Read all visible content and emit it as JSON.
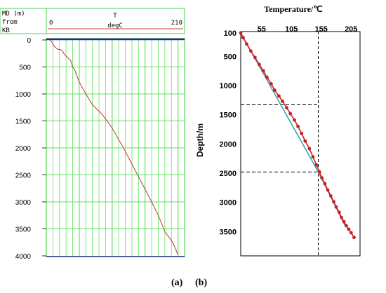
{
  "chart_data": [
    {
      "type": "line",
      "panel_label": "(a)",
      "header_left": [
        "MD (m)",
        "from",
        "KB"
      ],
      "series_name": "T",
      "series_unit": "degC",
      "xlim": [
        0,
        210
      ],
      "ylim": [
        0,
        4000
      ],
      "y_reversed": true,
      "grid": true,
      "x_ticks": [
        "0",
        "210"
      ],
      "y_ticks": [
        "0",
        "500",
        "1000",
        "1500",
        "2000",
        "2500",
        "3000",
        "3500",
        "4000"
      ],
      "colors": {
        "frame": "#4fd14f",
        "grid": "#5ee05e",
        "curve": "#c0392b",
        "header_line": "#c0392b",
        "top_line": "#1f2a8a"
      },
      "series": [
        {
          "x": [
            5,
            8,
            10,
            13,
            17,
            22,
            25,
            27,
            32,
            37,
            40,
            43,
            50,
            60,
            70,
            85,
            100,
            110,
            115,
            130,
            145,
            160,
            170,
            175,
            180,
            186,
            192,
            200
          ],
          "y": [
            0,
            30,
            80,
            130,
            170,
            180,
            210,
            260,
            320,
            380,
            500,
            550,
            780,
            1000,
            1200,
            1380,
            1630,
            1850,
            1950,
            2300,
            2650,
            3000,
            3250,
            3400,
            3550,
            3650,
            3750,
            3980
          ]
        }
      ]
    },
    {
      "type": "line",
      "panel_label": "(b)",
      "title": "Temperature/℃",
      "ylabel": "Depth/m",
      "xlim": [
        20,
        220
      ],
      "ylim": [
        100,
        3700
      ],
      "y_reversed": true,
      "x_ticks": [
        "55",
        "105",
        "155",
        "205"
      ],
      "y_ticks": [
        "100",
        "500",
        "1000",
        "1500",
        "2000",
        "2500",
        "3000",
        "3500"
      ],
      "colors": {
        "measured": "#c81e1e",
        "fit": "#3aa6b9",
        "guide": "#000000"
      },
      "guides": {
        "vertical_x": 150,
        "horizontal_y": [
          1330,
          2480
        ]
      },
      "series": [
        {
          "style": "line-markers",
          "x": [
            20,
            24,
            30,
            37,
            44,
            51,
            58,
            64,
            71,
            77,
            84,
            90,
            97,
            103,
            110,
            116,
            122,
            128,
            135,
            141,
            147,
            152,
            156,
            161,
            166,
            171,
            176,
            180,
            185,
            189,
            193,
            197,
            201,
            205,
            210
          ],
          "y": [
            100,
            180,
            290,
            410,
            520,
            640,
            750,
            860,
            970,
            1080,
            1180,
            1270,
            1380,
            1480,
            1590,
            1700,
            1820,
            1950,
            2080,
            2220,
            2360,
            2480,
            2580,
            2680,
            2790,
            2890,
            2990,
            3080,
            3170,
            3260,
            3330,
            3400,
            3460,
            3520,
            3600
          ]
        },
        {
          "style": "line",
          "x": [
            20,
            150,
            195
          ],
          "y": [
            100,
            2480,
            3400
          ]
        }
      ]
    }
  ]
}
